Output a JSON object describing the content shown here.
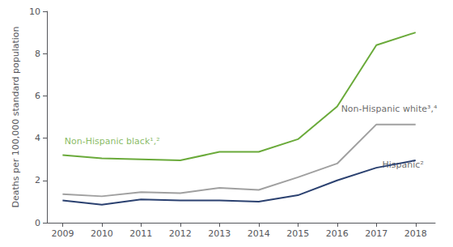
{
  "chart_data": {
    "type": "line",
    "x": [
      2009,
      2010,
      2011,
      2012,
      2013,
      2014,
      2015,
      2016,
      2017,
      2018
    ],
    "series": [
      {
        "color": "#6aaa3a",
        "values": [
          3.2,
          3.05,
          3.0,
          2.95,
          3.35,
          3.35,
          3.95,
          5.5,
          8.4,
          9.0
        ]
      },
      {
        "color": "#a0a0a0",
        "values": [
          1.35,
          1.25,
          1.45,
          1.4,
          1.65,
          1.55,
          2.15,
          2.8,
          4.65,
          4.65
        ]
      },
      {
        "color": "#2b4170",
        "values": [
          1.05,
          0.85,
          1.1,
          1.05,
          1.05,
          1.0,
          1.3,
          2.0,
          2.6,
          2.95
        ]
      }
    ],
    "xlim": [
      2008.6,
      2018.5
    ],
    "xticks": [
      2009,
      2010,
      2011,
      2012,
      2013,
      2014,
      2015,
      2016,
      2017,
      2018
    ],
    "ylim": [
      0,
      10
    ],
    "yticks": [
      0,
      2,
      4,
      6,
      8,
      10
    ],
    "ylabel": "Deaths per 100,000 standard population",
    "grid": false,
    "annotations": [
      {
        "text": "Non-Hispanic black¹,²",
        "x": 2009.05,
        "y": 3.55,
        "color": "#6aaa3a"
      },
      {
        "text": "Non-Hispanic white³,⁴",
        "x": 2016.1,
        "y": 5.1,
        "color": "#444444"
      },
      {
        "text": "Hispanic²",
        "x": 2017.15,
        "y": 2.45,
        "color": "#444444"
      }
    ]
  }
}
